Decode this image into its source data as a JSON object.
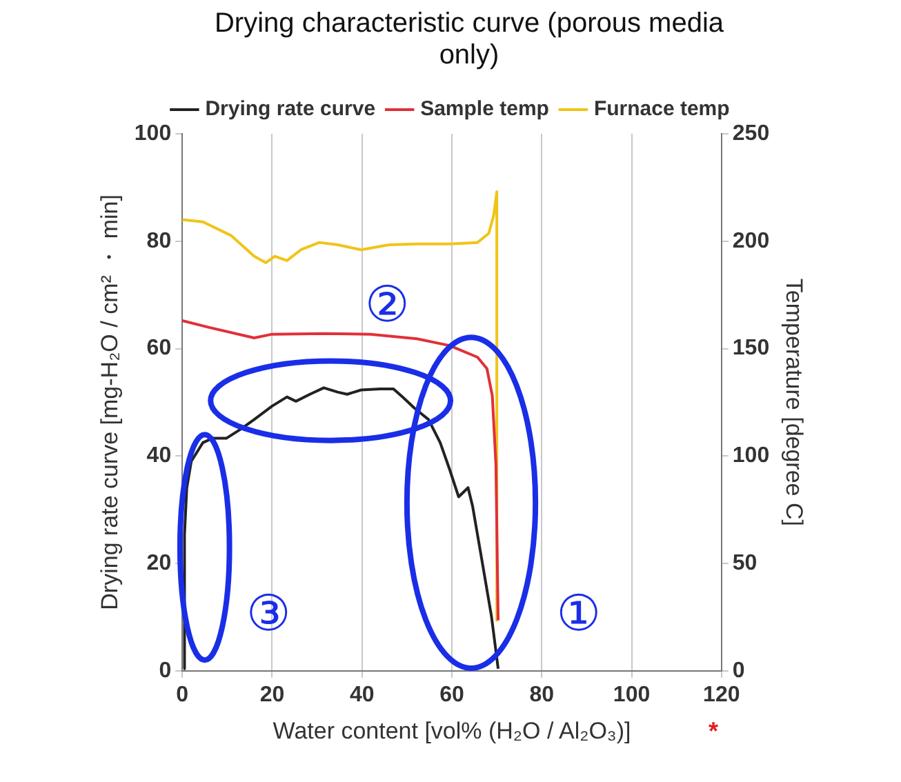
{
  "chart_data": {
    "type": "line",
    "title": "Drying characteristic curve (porous media only)",
    "xlabel": "Water content [vol% (H₂O / Al₂O₃)]",
    "ylabel": "Drying rate curve [mg-H₂O / cm² ・ min]",
    "y2label": "Temperature [degree C]",
    "xlim": [
      0,
      120
    ],
    "xticks": [
      0,
      20,
      40,
      60,
      80,
      100,
      120
    ],
    "ylim": [
      0,
      100
    ],
    "yticks": [
      0,
      20,
      40,
      60,
      80,
      100
    ],
    "y2lim": [
      0,
      250
    ],
    "y2ticks": [
      0,
      50,
      100,
      150,
      200,
      250
    ],
    "grid": "x",
    "legend": "top",
    "marker": "none",
    "line_style": "solid",
    "series": [
      {
        "name": "Drying rate curve",
        "color": "#222222",
        "x": [
          0.3,
          0.5,
          1,
          2,
          4.6,
          6.7,
          9.8,
          13,
          16,
          20,
          23.3,
          25.3,
          28.4,
          31.5,
          34.6,
          36.7,
          39.8,
          44,
          47,
          49,
          51.7,
          54.8,
          57.4,
          59.5,
          61.5,
          63.6,
          64.6,
          66.7,
          68.8,
          70.3
        ],
        "values": [
          0.4,
          25.4,
          34,
          39,
          42.5,
          43.3,
          43.3,
          45,
          46.8,
          49.3,
          51,
          50.2,
          51.5,
          52.7,
          51.9,
          51.5,
          52.3,
          52.5,
          52.5,
          51,
          48.9,
          46.8,
          42.5,
          37.5,
          32.4,
          34.1,
          30.7,
          20.5,
          10.2,
          0.4
        ]
      },
      {
        "name": "Sample temp",
        "color": "#e0303a",
        "axis": "y2",
        "x": [
          0,
          5.7,
          16,
          20,
          31.5,
          41.9,
          52.2,
          59.5,
          65.7,
          67.8,
          69,
          69.8,
          70.3
        ],
        "values": [
          163,
          160,
          155,
          156.7,
          157,
          156.7,
          154.6,
          151.4,
          146,
          140.7,
          128,
          96,
          23.5
        ]
      },
      {
        "name": "Furnace temp",
        "color": "#f0c419",
        "axis": "y2",
        "x": [
          0,
          4.6,
          10.9,
          16,
          18.6,
          20.6,
          23.3,
          26.4,
          30.5,
          34.6,
          39.8,
          46,
          52.2,
          59.5,
          65.7,
          68.2,
          69.3,
          70,
          70
        ],
        "values": [
          210,
          209,
          202.6,
          193,
          190,
          193,
          191,
          196,
          199.4,
          198.3,
          196,
          198.3,
          198.7,
          198.7,
          199.4,
          203.6,
          212,
          223,
          23.5
        ]
      }
    ],
    "annotations": [
      "①",
      "②",
      "③",
      "*"
    ]
  }
}
